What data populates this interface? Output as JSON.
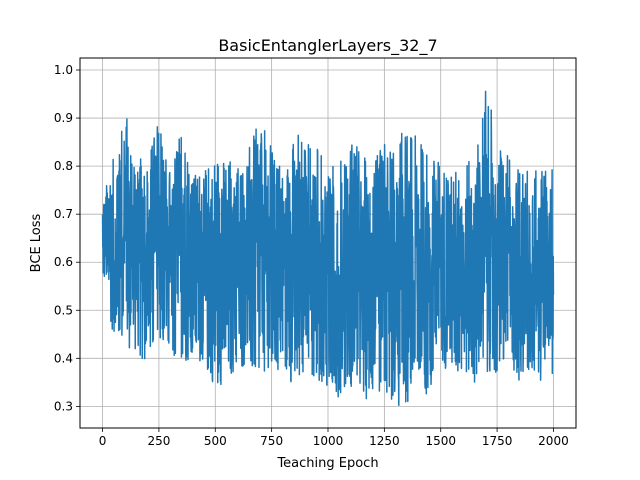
{
  "chart_data": {
    "type": "line",
    "title": "BasicEntanglerLayers_32_7",
    "xlabel": "Teaching Epoch",
    "ylabel": "BCE Loss",
    "xlim": [
      -100,
      2100
    ],
    "ylim": [
      0.255,
      1.025
    ],
    "xticks": [
      0,
      250,
      500,
      750,
      1000,
      1250,
      1500,
      1750,
      2000
    ],
    "yticks": [
      0.3,
      0.4,
      0.5,
      0.6,
      0.7,
      0.8,
      0.9,
      1.0
    ],
    "xtick_labels": [
      "0",
      "250",
      "500",
      "750",
      "1000",
      "1250",
      "1500",
      "1750",
      "2000"
    ],
    "ytick_labels": [
      "0.3",
      "0.4",
      "0.5",
      "0.6",
      "0.7",
      "0.8",
      "0.9",
      "1.0"
    ],
    "grid": true,
    "series": [
      {
        "color": "#1f77b4",
        "x_start": 0,
        "x_end": 2000,
        "n_points": 2001,
        "mean": 0.6,
        "typical_range": [
          0.35,
          0.82
        ],
        "envelope": {
          "x": [
            0,
            50,
            100,
            150,
            200,
            250,
            300,
            350,
            400,
            450,
            500,
            550,
            600,
            650,
            700,
            750,
            800,
            850,
            900,
            950,
            1000,
            1050,
            1100,
            1150,
            1200,
            1250,
            1300,
            1350,
            1400,
            1450,
            1500,
            1550,
            1600,
            1650,
            1700,
            1750,
            1800,
            1850,
            1900,
            1950,
            2000
          ],
          "max": [
            0.73,
            0.82,
            0.92,
            0.82,
            0.81,
            0.91,
            0.79,
            0.89,
            0.78,
            0.8,
            0.82,
            0.82,
            0.81,
            0.84,
            0.9,
            0.84,
            0.8,
            0.86,
            0.91,
            0.84,
            0.8,
            0.82,
            0.86,
            0.83,
            0.8,
            0.86,
            0.87,
            0.87,
            0.86,
            0.82,
            0.81,
            0.78,
            0.82,
            0.8,
            0.98,
            0.85,
            0.82,
            0.8,
            0.8,
            0.79,
            0.81
          ],
          "min": [
            0.57,
            0.44,
            0.42,
            0.41,
            0.38,
            0.43,
            0.39,
            0.38,
            0.4,
            0.38,
            0.34,
            0.35,
            0.38,
            0.37,
            0.34,
            0.35,
            0.38,
            0.33,
            0.38,
            0.35,
            0.34,
            0.31,
            0.34,
            0.31,
            0.32,
            0.33,
            0.29,
            0.3,
            0.34,
            0.31,
            0.4,
            0.35,
            0.37,
            0.35,
            0.34,
            0.36,
            0.38,
            0.35,
            0.37,
            0.35,
            0.37
          ]
        }
      }
    ]
  }
}
